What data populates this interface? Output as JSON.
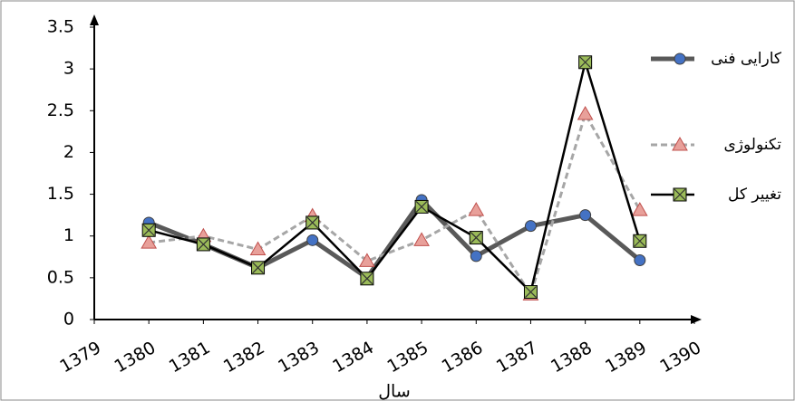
{
  "chart_data": {
    "type": "line",
    "x_label": "سال",
    "x": [
      1380,
      1381,
      1382,
      1383,
      1384,
      1385,
      1386,
      1387,
      1388,
      1389
    ],
    "series": [
      {
        "name": "کارایی فنی",
        "color": "#595959",
        "marker": "circle",
        "marker_color": "#4472c4",
        "dash": false,
        "width": 5,
        "values": [
          1.16,
          0.9,
          0.62,
          0.95,
          0.5,
          1.43,
          0.76,
          1.12,
          1.25,
          0.71
        ]
      },
      {
        "name": "تکنولوژی",
        "color": "#a6a6a6",
        "marker": "triangle",
        "marker_color": "#e8a09a",
        "dash": true,
        "width": 3,
        "values": [
          0.92,
          1.0,
          0.84,
          1.24,
          0.7,
          0.95,
          1.31,
          0.3,
          2.46,
          1.31
        ]
      },
      {
        "name": "تغییر کل",
        "color": "#000000",
        "marker": "square",
        "marker_color": "#9bbb59",
        "dash": false,
        "width": 2.5,
        "values": [
          1.07,
          0.9,
          0.62,
          1.16,
          0.49,
          1.35,
          0.98,
          0.33,
          3.08,
          0.94
        ]
      }
    ],
    "xlim": [
      1379,
      1390
    ],
    "xticks": [
      1379,
      1380,
      1381,
      1382,
      1383,
      1384,
      1385,
      1386,
      1387,
      1388,
      1389,
      1390
    ],
    "ylim": [
      0,
      3.5
    ],
    "yticks": [
      0,
      0.5,
      1,
      1.5,
      2,
      2.5,
      3,
      3.5
    ],
    "legend": "right"
  }
}
